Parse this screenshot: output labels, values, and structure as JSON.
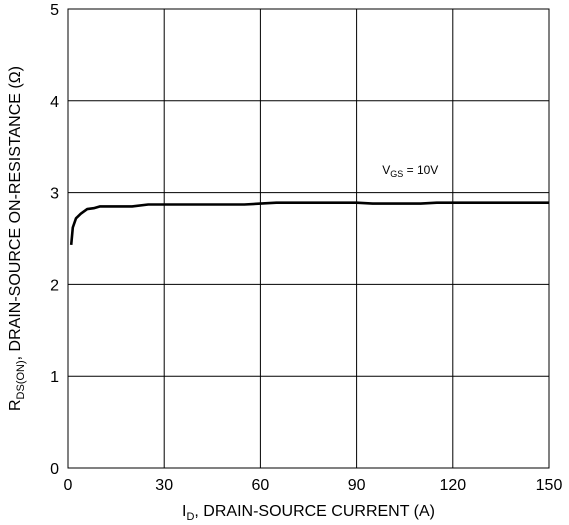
{
  "chart_data": {
    "type": "line",
    "xlabel": {
      "main": "I",
      "sub": "D",
      "rest": ", DRAIN-SOURCE CURRENT (A)"
    },
    "ylabel": {
      "main": "R",
      "sub": "DS(ON)",
      "rest": ", DRAIN-SOURCE ON-RESISTANCE (Ω)"
    },
    "xlim": [
      0,
      150
    ],
    "ylim": [
      0,
      5
    ],
    "xticks": [
      0,
      30,
      60,
      90,
      120,
      150
    ],
    "yticks": [
      0,
      1,
      2,
      3,
      4,
      5
    ],
    "grid": true,
    "annotations": [
      {
        "main": "V",
        "sub": "GS",
        "rest": " = 10V",
        "x": 98,
        "y": 3.2
      }
    ],
    "series": [
      {
        "x": [
          1,
          1.5,
          2.5,
          4,
          6,
          8,
          10,
          15,
          20,
          25,
          30,
          40,
          50,
          55,
          60,
          65,
          70,
          80,
          90,
          95,
          100,
          105,
          110,
          115,
          120,
          130,
          140,
          150
        ],
        "y": [
          2.43,
          2.62,
          2.72,
          2.77,
          2.82,
          2.83,
          2.85,
          2.85,
          2.85,
          2.87,
          2.87,
          2.87,
          2.87,
          2.87,
          2.88,
          2.89,
          2.89,
          2.89,
          2.89,
          2.88,
          2.88,
          2.88,
          2.88,
          2.89,
          2.89,
          2.89,
          2.89,
          2.89
        ]
      }
    ]
  }
}
